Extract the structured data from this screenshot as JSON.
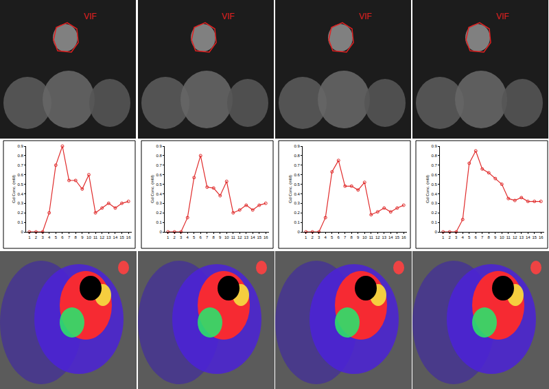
{
  "image_labels": [
    "VIF",
    "VIF",
    "VIF",
    "VIF"
  ],
  "chart_data": [
    {
      "type": "line",
      "y_label": "Gd Conc. (mM)",
      "color": "#e02b2b",
      "marker": "circle-open",
      "grid": false,
      "x": [
        1,
        2,
        3,
        4,
        5,
        6,
        7,
        8,
        9,
        10,
        11,
        12,
        13,
        14,
        15,
        16
      ],
      "values": [
        0,
        0,
        0,
        0.2,
        0.7,
        0.9,
        0.54,
        0.54,
        0.45,
        0.6,
        0.2,
        0.25,
        0.3,
        0.25,
        0.3,
        0.32
      ],
      "xlim": [
        0.5,
        16.5
      ],
      "xticks": [
        1,
        2,
        3,
        4,
        5,
        6,
        7,
        8,
        9,
        10,
        11,
        12,
        13,
        14,
        15,
        16
      ],
      "ylim": [
        0,
        0.9
      ],
      "yticks": [
        0,
        0.1,
        0.2,
        0.3,
        0.4,
        0.5,
        0.6,
        0.7,
        0.8,
        0.9
      ]
    },
    {
      "type": "line",
      "y_label": "Gd Conc. (mM)",
      "color": "#e02b2b",
      "marker": "circle-open",
      "grid": false,
      "x": [
        1,
        2,
        3,
        4,
        5,
        6,
        7,
        8,
        9,
        10,
        11,
        12,
        13,
        14,
        15,
        16
      ],
      "values": [
        0,
        0,
        0,
        0.15,
        0.57,
        0.8,
        0.47,
        0.46,
        0.38,
        0.53,
        0.2,
        0.23,
        0.28,
        0.23,
        0.28,
        0.3
      ],
      "xlim": [
        0.5,
        16.5
      ],
      "xticks": [
        1,
        2,
        3,
        4,
        5,
        6,
        7,
        8,
        9,
        10,
        11,
        12,
        13,
        14,
        15,
        16
      ],
      "ylim": [
        0,
        0.9
      ],
      "yticks": [
        0,
        0.1,
        0.2,
        0.3,
        0.4,
        0.5,
        0.6,
        0.7,
        0.8,
        0.9
      ]
    },
    {
      "type": "line",
      "y_label": "Gd Conc. (mM)",
      "color": "#e02b2b",
      "marker": "circle-open",
      "grid": false,
      "x": [
        1,
        2,
        3,
        4,
        5,
        6,
        7,
        8,
        9,
        10,
        11,
        12,
        13,
        14,
        15,
        16
      ],
      "values": [
        0,
        0,
        0,
        0.15,
        0.63,
        0.75,
        0.48,
        0.48,
        0.44,
        0.52,
        0.18,
        0.21,
        0.25,
        0.21,
        0.25,
        0.28
      ],
      "xlim": [
        0.5,
        16.5
      ],
      "xticks": [
        1,
        2,
        3,
        4,
        5,
        6,
        7,
        8,
        9,
        10,
        11,
        12,
        13,
        14,
        15,
        16
      ],
      "ylim": [
        0,
        0.9
      ],
      "yticks": [
        0,
        0.1,
        0.2,
        0.3,
        0.4,
        0.5,
        0.6,
        0.7,
        0.8,
        0.9
      ]
    },
    {
      "type": "line",
      "y_label": "Gd Conc. (mM)",
      "color": "#e02b2b",
      "marker": "circle-open",
      "grid": false,
      "x": [
        1,
        2,
        3,
        4,
        5,
        6,
        7,
        8,
        9,
        10,
        11,
        12,
        13,
        14,
        15,
        16
      ],
      "values": [
        0,
        0,
        0,
        0.13,
        0.72,
        0.85,
        0.66,
        0.62,
        0.56,
        0.5,
        0.35,
        0.33,
        0.36,
        0.32,
        0.32,
        0.32
      ],
      "xlim": [
        0.5,
        16.5
      ],
      "xticks": [
        1,
        2,
        3,
        4,
        5,
        6,
        7,
        8,
        9,
        10,
        11,
        12,
        13,
        14,
        15,
        16
      ],
      "ylim": [
        0,
        0.9
      ],
      "yticks": [
        0,
        0.1,
        0.2,
        0.3,
        0.4,
        0.5,
        0.6,
        0.7,
        0.8,
        0.9
      ]
    }
  ]
}
